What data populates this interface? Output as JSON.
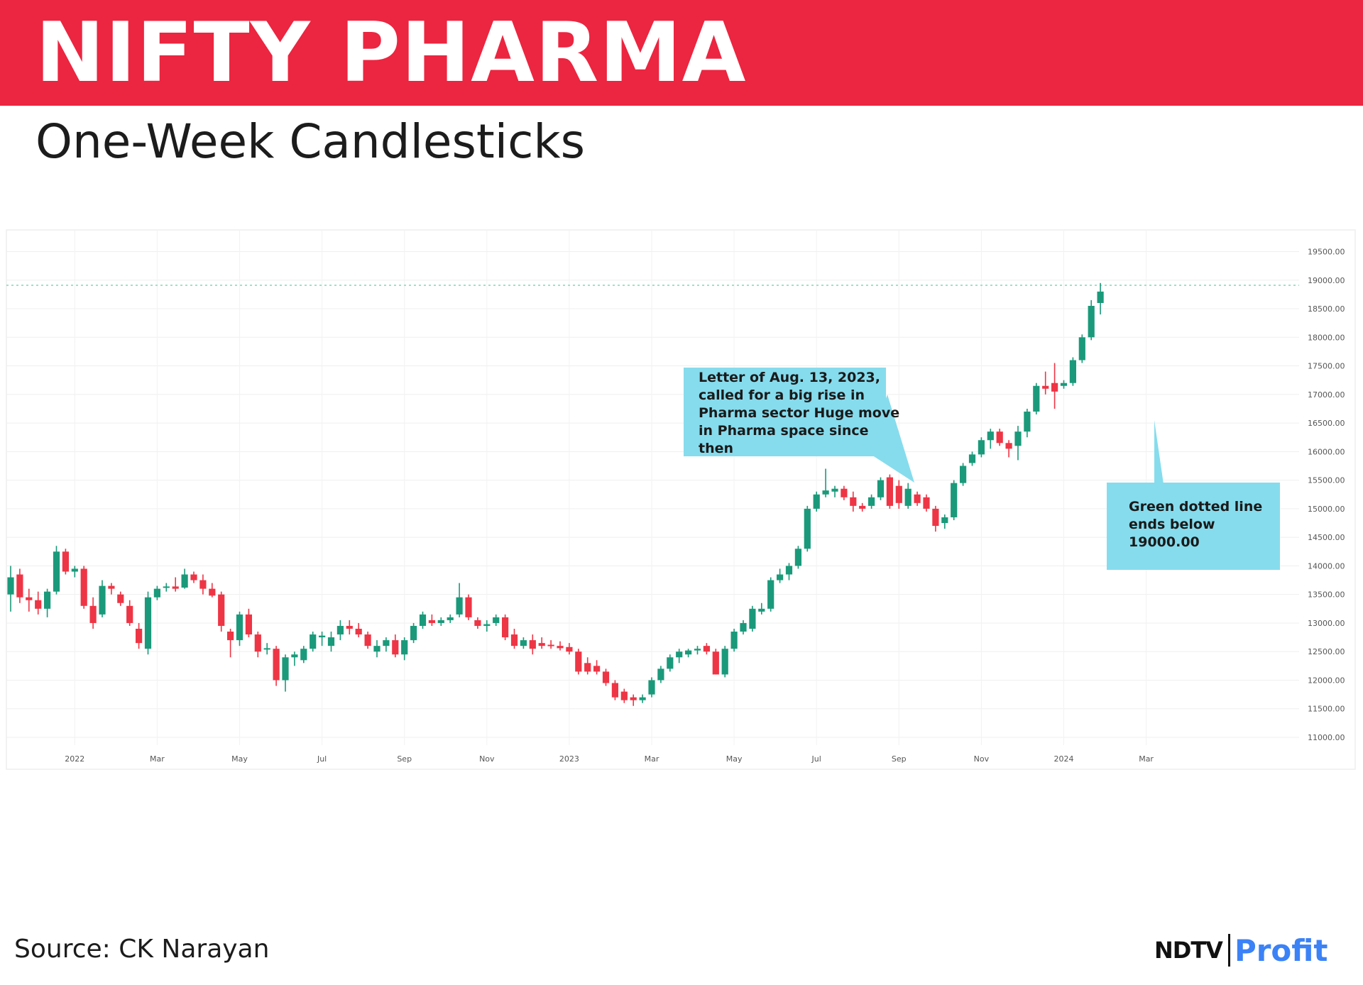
{
  "header": {
    "title": "NIFTY PHARMA",
    "subtitle": "One-Week Candlesticks"
  },
  "footer": {
    "source": "Source: CK Narayan"
  },
  "logo": {
    "brand": "NDTV",
    "product": "Profit"
  },
  "colors": {
    "banner": "#ec2540",
    "bullish": "#1a9a7a",
    "bearish": "#ee3545",
    "callout": "#86dced",
    "reference_line": "#9fe0c8"
  },
  "chart_data": {
    "type": "candlestick",
    "title": "",
    "xlabel": "",
    "ylabel": "",
    "ylim": [
      10750,
      19750
    ],
    "yticks": [
      "11000.00",
      "11500.00",
      "12000.00",
      "12500.00",
      "13000.00",
      "13500.00",
      "14000.00",
      "14500.00",
      "15000.00",
      "15500.00",
      "16000.00",
      "16500.00",
      "17000.00",
      "17500.00",
      "18000.00",
      "18500.00",
      "19000.00",
      "19500.00"
    ],
    "xticks": [
      {
        "label": "2022",
        "index": 7
      },
      {
        "label": "Mar",
        "index": 16
      },
      {
        "label": "May",
        "index": 25
      },
      {
        "label": "Jul",
        "index": 34
      },
      {
        "label": "Sep",
        "index": 43
      },
      {
        "label": "Nov",
        "index": 52
      },
      {
        "label": "2023",
        "index": 61
      },
      {
        "label": "Mar",
        "index": 70
      },
      {
        "label": "May",
        "index": 79
      },
      {
        "label": "Jul",
        "index": 88
      },
      {
        "label": "Sep",
        "index": 97
      },
      {
        "label": "Nov",
        "index": 106
      },
      {
        "label": "2024",
        "index": 115
      },
      {
        "label": "Mar",
        "index": 124
      }
    ],
    "reference_line": {
      "value": 18910,
      "style": "dotted"
    },
    "candles": [
      {
        "o": 13500,
        "h": 14000,
        "l": 13200,
        "c": 13800
      },
      {
        "o": 13850,
        "h": 13950,
        "l": 13350,
        "c": 13450
      },
      {
        "o": 13450,
        "h": 13600,
        "l": 13200,
        "c": 13400
      },
      {
        "o": 13400,
        "h": 13550,
        "l": 13150,
        "c": 13250
      },
      {
        "o": 13250,
        "h": 13600,
        "l": 13100,
        "c": 13550
      },
      {
        "o": 13550,
        "h": 14350,
        "l": 13500,
        "c": 14250
      },
      {
        "o": 14250,
        "h": 14300,
        "l": 13850,
        "c": 13900
      },
      {
        "o": 13900,
        "h": 14000,
        "l": 13800,
        "c": 13950
      },
      {
        "o": 13950,
        "h": 14000,
        "l": 13250,
        "c": 13300
      },
      {
        "o": 13300,
        "h": 13450,
        "l": 12900,
        "c": 13000
      },
      {
        "o": 13150,
        "h": 13750,
        "l": 13100,
        "c": 13650
      },
      {
        "o": 13650,
        "h": 13700,
        "l": 13500,
        "c": 13600
      },
      {
        "o": 13500,
        "h": 13550,
        "l": 13300,
        "c": 13350
      },
      {
        "o": 13300,
        "h": 13400,
        "l": 12950,
        "c": 13000
      },
      {
        "o": 12900,
        "h": 13000,
        "l": 12550,
        "c": 12650
      },
      {
        "o": 12550,
        "h": 13550,
        "l": 12450,
        "c": 13450
      },
      {
        "o": 13450,
        "h": 13650,
        "l": 13400,
        "c": 13600
      },
      {
        "o": 13620,
        "h": 13700,
        "l": 13550,
        "c": 13640
      },
      {
        "o": 13640,
        "h": 13800,
        "l": 13550,
        "c": 13600
      },
      {
        "o": 13620,
        "h": 13950,
        "l": 13600,
        "c": 13850
      },
      {
        "o": 13850,
        "h": 13900,
        "l": 13700,
        "c": 13750
      },
      {
        "o": 13750,
        "h": 13850,
        "l": 13500,
        "c": 13600
      },
      {
        "o": 13600,
        "h": 13700,
        "l": 13450,
        "c": 13480
      },
      {
        "o": 13500,
        "h": 13550,
        "l": 12850,
        "c": 12950
      },
      {
        "o": 12850,
        "h": 12900,
        "l": 12400,
        "c": 12700
      },
      {
        "o": 12700,
        "h": 13200,
        "l": 12600,
        "c": 13150
      },
      {
        "o": 13150,
        "h": 13250,
        "l": 12750,
        "c": 12800
      },
      {
        "o": 12800,
        "h": 12850,
        "l": 12400,
        "c": 12500
      },
      {
        "o": 12550,
        "h": 12650,
        "l": 12450,
        "c": 12560
      },
      {
        "o": 12550,
        "h": 12600,
        "l": 11900,
        "c": 12000
      },
      {
        "o": 12000,
        "h": 12450,
        "l": 11800,
        "c": 12400
      },
      {
        "o": 12400,
        "h": 12500,
        "l": 12250,
        "c": 12450
      },
      {
        "o": 12350,
        "h": 12600,
        "l": 12300,
        "c": 12550
      },
      {
        "o": 12550,
        "h": 12850,
        "l": 12500,
        "c": 12800
      },
      {
        "o": 12750,
        "h": 12850,
        "l": 12600,
        "c": 12780
      },
      {
        "o": 12600,
        "h": 12850,
        "l": 12500,
        "c": 12750
      },
      {
        "o": 12800,
        "h": 13050,
        "l": 12700,
        "c": 12950
      },
      {
        "o": 12950,
        "h": 13050,
        "l": 12800,
        "c": 12900
      },
      {
        "o": 12900,
        "h": 13000,
        "l": 12750,
        "c": 12800
      },
      {
        "o": 12800,
        "h": 12850,
        "l": 12550,
        "c": 12600
      },
      {
        "o": 12500,
        "h": 12700,
        "l": 12400,
        "c": 12600
      },
      {
        "o": 12600,
        "h": 12750,
        "l": 12500,
        "c": 12700
      },
      {
        "o": 12700,
        "h": 12800,
        "l": 12400,
        "c": 12450
      },
      {
        "o": 12450,
        "h": 12750,
        "l": 12350,
        "c": 12700
      },
      {
        "o": 12700,
        "h": 13000,
        "l": 12650,
        "c": 12950
      },
      {
        "o": 12950,
        "h": 13200,
        "l": 12900,
        "c": 13150
      },
      {
        "o": 13050,
        "h": 13150,
        "l": 12950,
        "c": 13000
      },
      {
        "o": 13000,
        "h": 13100,
        "l": 12950,
        "c": 13050
      },
      {
        "o": 13050,
        "h": 13150,
        "l": 13000,
        "c": 13100
      },
      {
        "o": 13150,
        "h": 13700,
        "l": 13100,
        "c": 13450
      },
      {
        "o": 13450,
        "h": 13500,
        "l": 13050,
        "c": 13100
      },
      {
        "o": 13050,
        "h": 13100,
        "l": 12900,
        "c": 12950
      },
      {
        "o": 12950,
        "h": 13050,
        "l": 12850,
        "c": 12980
      },
      {
        "o": 13000,
        "h": 13150,
        "l": 12950,
        "c": 13100
      },
      {
        "o": 13100,
        "h": 13150,
        "l": 12700,
        "c": 12750
      },
      {
        "o": 12800,
        "h": 12900,
        "l": 12550,
        "c": 12600
      },
      {
        "o": 12600,
        "h": 12750,
        "l": 12550,
        "c": 12700
      },
      {
        "o": 12700,
        "h": 12800,
        "l": 12450,
        "c": 12550
      },
      {
        "o": 12650,
        "h": 12750,
        "l": 12550,
        "c": 12600
      },
      {
        "o": 12620,
        "h": 12700,
        "l": 12550,
        "c": 12600
      },
      {
        "o": 12600,
        "h": 12680,
        "l": 12520,
        "c": 12560
      },
      {
        "o": 12580,
        "h": 12650,
        "l": 12450,
        "c": 12500
      },
      {
        "o": 12500,
        "h": 12550,
        "l": 12100,
        "c": 12150
      },
      {
        "o": 12300,
        "h": 12400,
        "l": 12100,
        "c": 12150
      },
      {
        "o": 12250,
        "h": 12350,
        "l": 12100,
        "c": 12150
      },
      {
        "o": 12150,
        "h": 12200,
        "l": 11900,
        "c": 11950
      },
      {
        "o": 11950,
        "h": 12000,
        "l": 11650,
        "c": 11700
      },
      {
        "o": 11800,
        "h": 11850,
        "l": 11600,
        "c": 11650
      },
      {
        "o": 11700,
        "h": 11750,
        "l": 11550,
        "c": 11650
      },
      {
        "o": 11650,
        "h": 11750,
        "l": 11600,
        "c": 11700
      },
      {
        "o": 11750,
        "h": 12050,
        "l": 11700,
        "c": 12000
      },
      {
        "o": 12000,
        "h": 12250,
        "l": 11950,
        "c": 12200
      },
      {
        "o": 12200,
        "h": 12450,
        "l": 12150,
        "c": 12400
      },
      {
        "o": 12400,
        "h": 12550,
        "l": 12300,
        "c": 12500
      },
      {
        "o": 12450,
        "h": 12550,
        "l": 12400,
        "c": 12520
      },
      {
        "o": 12520,
        "h": 12600,
        "l": 12450,
        "c": 12550
      },
      {
        "o": 12600,
        "h": 12650,
        "l": 12450,
        "c": 12500
      },
      {
        "o": 12500,
        "h": 12550,
        "l": 12100,
        "c": 12100
      },
      {
        "o": 12100,
        "h": 12600,
        "l": 12050,
        "c": 12550
      },
      {
        "o": 12550,
        "h": 12900,
        "l": 12500,
        "c": 12850
      },
      {
        "o": 12850,
        "h": 13050,
        "l": 12800,
        "c": 13000
      },
      {
        "o": 12900,
        "h": 13300,
        "l": 12850,
        "c": 13250
      },
      {
        "o": 13200,
        "h": 13350,
        "l": 13150,
        "c": 13250
      },
      {
        "o": 13250,
        "h": 13800,
        "l": 13200,
        "c": 13750
      },
      {
        "o": 13750,
        "h": 13950,
        "l": 13700,
        "c": 13850
      },
      {
        "o": 13850,
        "h": 14050,
        "l": 13750,
        "c": 14000
      },
      {
        "o": 14000,
        "h": 14350,
        "l": 13950,
        "c": 14300
      },
      {
        "o": 14300,
        "h": 15050,
        "l": 14250,
        "c": 15000
      },
      {
        "o": 15000,
        "h": 15300,
        "l": 14950,
        "c": 15250
      },
      {
        "o": 15250,
        "h": 15700,
        "l": 15200,
        "c": 15320
      },
      {
        "o": 15300,
        "h": 15400,
        "l": 15200,
        "c": 15350
      },
      {
        "o": 15350,
        "h": 15400,
        "l": 15150,
        "c": 15200
      },
      {
        "o": 15200,
        "h": 15300,
        "l": 14950,
        "c": 15050
      },
      {
        "o": 15050,
        "h": 15100,
        "l": 14950,
        "c": 15000
      },
      {
        "o": 15050,
        "h": 15250,
        "l": 15000,
        "c": 15200
      },
      {
        "o": 15200,
        "h": 15550,
        "l": 15150,
        "c": 15500
      },
      {
        "o": 15550,
        "h": 15600,
        "l": 15000,
        "c": 15050
      },
      {
        "o": 15400,
        "h": 15500,
        "l": 15000,
        "c": 15100
      },
      {
        "o": 15050,
        "h": 15450,
        "l": 15000,
        "c": 15350
      },
      {
        "o": 15250,
        "h": 15300,
        "l": 15050,
        "c": 15100
      },
      {
        "o": 15200,
        "h": 15250,
        "l": 14950,
        "c": 15000
      },
      {
        "o": 15000,
        "h": 15050,
        "l": 14600,
        "c": 14700
      },
      {
        "o": 14750,
        "h": 14900,
        "l": 14650,
        "c": 14850
      },
      {
        "o": 14850,
        "h": 15500,
        "l": 14800,
        "c": 15450
      },
      {
        "o": 15450,
        "h": 15800,
        "l": 15400,
        "c": 15750
      },
      {
        "o": 15800,
        "h": 16000,
        "l": 15750,
        "c": 15950
      },
      {
        "o": 15950,
        "h": 16250,
        "l": 15900,
        "c": 16200
      },
      {
        "o": 16200,
        "h": 16400,
        "l": 16050,
        "c": 16350
      },
      {
        "o": 16350,
        "h": 16400,
        "l": 16100,
        "c": 16150
      },
      {
        "o": 16150,
        "h": 16200,
        "l": 15900,
        "c": 16050
      },
      {
        "o": 16100,
        "h": 16450,
        "l": 15850,
        "c": 16350
      },
      {
        "o": 16350,
        "h": 16750,
        "l": 16250,
        "c": 16700
      },
      {
        "o": 16700,
        "h": 17200,
        "l": 16650,
        "c": 17150
      },
      {
        "o": 17150,
        "h": 17400,
        "l": 17000,
        "c": 17100
      },
      {
        "o": 17200,
        "h": 17550,
        "l": 16750,
        "c": 17050
      },
      {
        "o": 17150,
        "h": 17250,
        "l": 17100,
        "c": 17200
      },
      {
        "o": 17200,
        "h": 17650,
        "l": 17150,
        "c": 17600
      },
      {
        "o": 17600,
        "h": 18050,
        "l": 17550,
        "c": 18000
      },
      {
        "o": 18000,
        "h": 18650,
        "l": 17950,
        "c": 18550
      },
      {
        "o": 18600,
        "h": 18950,
        "l": 18400,
        "c": 18800
      }
    ],
    "annotations": [
      {
        "id": "aug-letter",
        "text": "Letter of Aug. 13, 2023, called for a big rise in Pharma sector Huge move in Pharma space since then",
        "points_to_index": 89
      },
      {
        "id": "green-line",
        "text": "Green dotted line ends below 19000.00",
        "points_to_index": 116
      }
    ]
  }
}
